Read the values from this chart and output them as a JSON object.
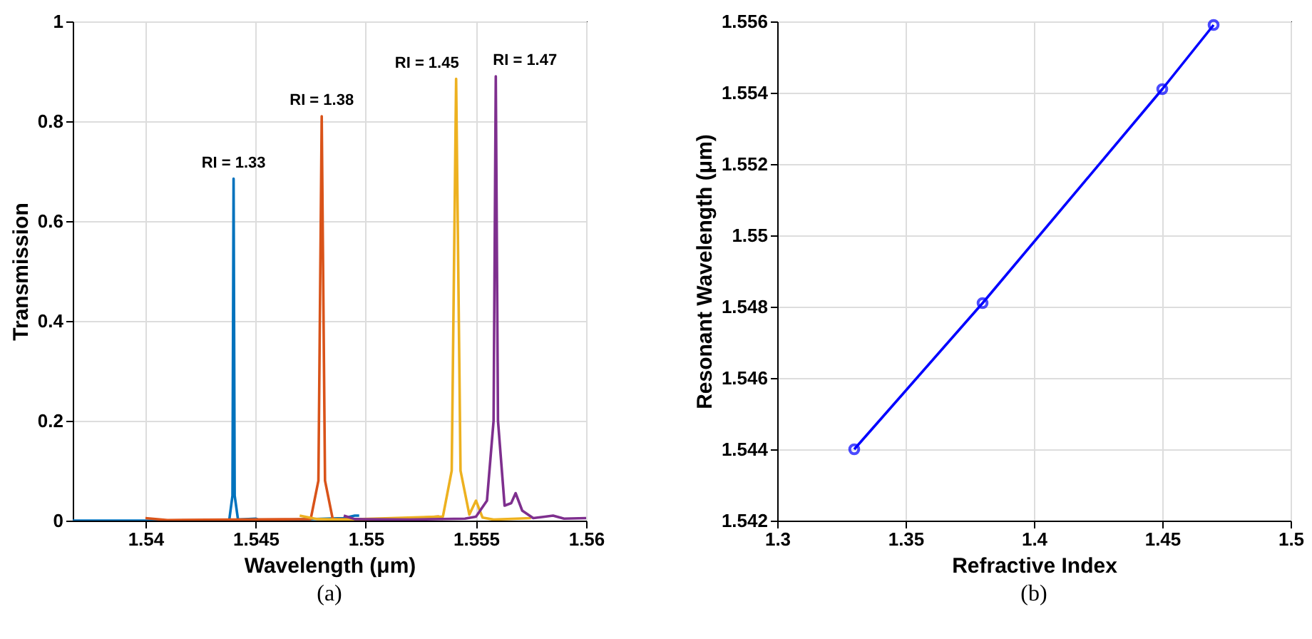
{
  "chart_data": [
    {
      "type": "line",
      "xlabel": "Wavelength (μm)",
      "ylabel": "Transmission",
      "xlim": [
        1.5367,
        1.56
      ],
      "ylim": [
        0,
        1
      ],
      "xticks": [
        1.54,
        1.545,
        1.55,
        1.555,
        1.56
      ],
      "yticks": [
        0,
        0.2,
        0.4,
        0.6,
        0.8,
        1
      ],
      "grid": true,
      "line_style": "solid",
      "series": [
        {
          "color": "#0072bd",
          "x": [
            1.5367,
            1.5438,
            1.54395,
            1.544,
            1.54405,
            1.5442,
            1.545,
            1.5452,
            1.549,
            1.5495,
            1.5497
          ],
          "values": [
            0,
            0,
            0.05,
            0.685,
            0.05,
            0.002,
            0.004,
            0,
            0.005,
            0.01,
            0.01
          ]
        },
        {
          "color": "#d95319",
          "x": [
            1.54,
            1.541,
            1.5475,
            1.54785,
            1.548,
            1.54815,
            1.5485,
            1.55,
            1.552,
            1.5533,
            1.5535
          ],
          "values": [
            0.005,
            0.001,
            0.003,
            0.08,
            0.81,
            0.08,
            0.003,
            0.002,
            0.004,
            0.008,
            0.003
          ]
        },
        {
          "color": "#edb120",
          "x": [
            1.547,
            1.5478,
            1.549,
            1.5535,
            1.5539,
            1.5541,
            1.5543,
            1.5547,
            1.555,
            1.5553,
            1.5558,
            1.5575
          ],
          "values": [
            0.01,
            0.003,
            0.002,
            0.008,
            0.1,
            0.885,
            0.1,
            0.012,
            0.04,
            0.006,
            0.002,
            0.005
          ]
        },
        {
          "color": "#7e2f8e",
          "x": [
            1.549,
            1.5495,
            1.552,
            1.5545,
            1.555,
            1.5555,
            1.5558,
            1.5559,
            1.556,
            1.5563,
            1.5566,
            1.5568,
            1.5571,
            1.5576,
            1.5585,
            1.559,
            1.56
          ],
          "values": [
            0.01,
            0.003,
            0.002,
            0.004,
            0.008,
            0.04,
            0.2,
            0.89,
            0.2,
            0.03,
            0.035,
            0.055,
            0.02,
            0.005,
            0.01,
            0.004,
            0.005
          ]
        }
      ],
      "annotations": [
        {
          "text": "RI = 1.33",
          "x": 1.544,
          "y": 0.685
        },
        {
          "text": "RI = 1.38",
          "x": 1.548,
          "y": 0.81
        },
        {
          "text": "RI = 1.45",
          "x": 1.5541,
          "y": 0.885
        },
        {
          "text": "RI = 1.47",
          "x": 1.5559,
          "y": 0.89
        },
        "(a)"
      ]
    },
    {
      "type": "line",
      "xlabel": "Refractive Index",
      "ylabel": "Resonant Wavelength (μm)",
      "xlim": [
        1.3,
        1.5
      ],
      "ylim": [
        1.542,
        1.556
      ],
      "xticks": [
        1.3,
        1.35,
        1.4,
        1.45,
        1.5
      ],
      "yticks": [
        1.542,
        1.544,
        1.546,
        1.548,
        1.55,
        1.552,
        1.554,
        1.556
      ],
      "grid": true,
      "marker": "circle",
      "line_style": "solid",
      "series": [
        {
          "color": "#0000ff",
          "x": [
            1.33,
            1.38,
            1.45,
            1.47
          ],
          "values": [
            1.544,
            1.5481,
            1.5541,
            1.5559
          ]
        }
      ],
      "annotations": [
        "(b)"
      ]
    }
  ]
}
